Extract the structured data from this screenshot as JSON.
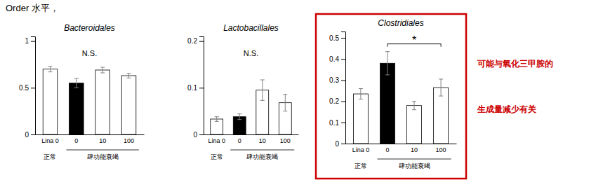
{
  "title": "Order 水平，",
  "annotations": [
    {
      "text": "可能与氧化三甲胺的",
      "color": "#cc0000"
    },
    {
      "text": "生成量减少有关",
      "color": "#cc0000"
    }
  ],
  "chart_data": [
    {
      "type": "bar",
      "title": "Bacteroidales",
      "categories": [
        "Lina 0",
        "0",
        "10",
        "100"
      ],
      "category_groups": [
        {
          "label": "正常",
          "categories": [
            "Lina 0"
          ]
        },
        {
          "label": "肆功能衰竭",
          "categories": [
            "0",
            "10",
            "100"
          ]
        }
      ],
      "values": [
        0.7,
        0.55,
        0.69,
        0.63
      ],
      "errors": [
        0.03,
        0.05,
        0.03,
        0.025
      ],
      "colors": [
        "white",
        "black",
        "white",
        "white"
      ],
      "ylim": [
        0,
        1.05
      ],
      "yticks": [
        0,
        0.5,
        1
      ],
      "annotations": [
        {
          "text": "N.S."
        }
      ]
    },
    {
      "type": "bar",
      "title": "Lactobacillales",
      "categories": [
        "Lina 0",
        "0",
        "10",
        "100"
      ],
      "category_groups": [
        {
          "label": "正常",
          "categories": [
            "Lina 0"
          ]
        },
        {
          "label": "肆功能衰竭",
          "categories": [
            "0",
            "10",
            "100"
          ]
        }
      ],
      "values": [
        0.033,
        0.038,
        0.095,
        0.068
      ],
      "errors": [
        0.005,
        0.006,
        0.022,
        0.018
      ],
      "colors": [
        "white",
        "black",
        "white",
        "white"
      ],
      "ylim": [
        0,
        0.21
      ],
      "yticks": [
        0,
        0.1,
        0.2
      ],
      "annotations": [
        {
          "text": "N.S."
        }
      ]
    },
    {
      "type": "bar",
      "title": "Clostridiales",
      "categories": [
        "Lina 0",
        "0",
        "10",
        "100"
      ],
      "category_groups": [
        {
          "label": "正常",
          "categories": [
            "Lina 0"
          ]
        },
        {
          "label": "肆功能衰竭",
          "categories": [
            "0",
            "10",
            "100"
          ]
        }
      ],
      "values": [
        0.235,
        0.38,
        0.18,
        0.265
      ],
      "errors": [
        0.025,
        0.055,
        0.02,
        0.04
      ],
      "colors": [
        "white",
        "black",
        "white",
        "white"
      ],
      "ylim": [
        0,
        0.53
      ],
      "yticks": [
        0,
        0.1,
        0.2,
        0.3,
        0.4,
        0.5
      ],
      "annotations": [
        {
          "text": "*",
          "between": [
            "0",
            "100"
          ]
        }
      ],
      "highlight": "#cc0000"
    }
  ]
}
